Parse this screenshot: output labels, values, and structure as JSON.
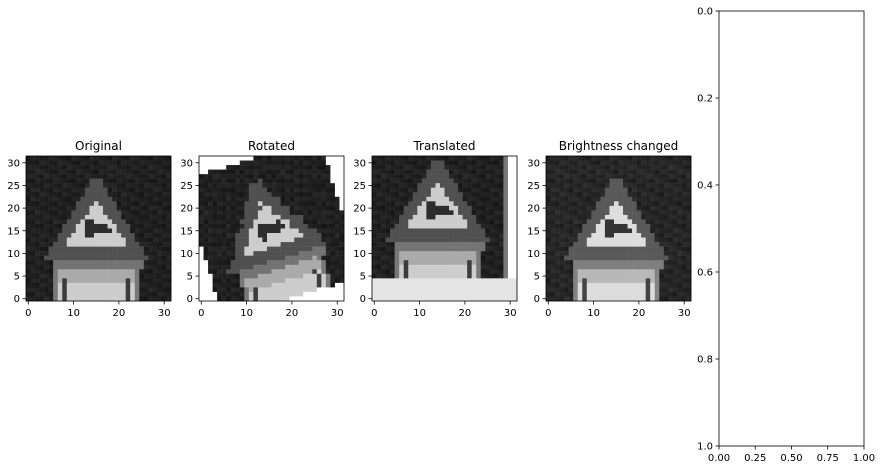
{
  "chart_data": [
    {
      "type": "image",
      "title": "Original",
      "variant": "original",
      "xlim": [
        -0.5,
        31.5
      ],
      "ylim": [
        31.5,
        -0.5
      ],
      "xticks": [
        0,
        10,
        20,
        30
      ],
      "yticks": [
        0,
        5,
        10,
        15,
        20,
        25,
        30
      ],
      "colormap": "gray"
    },
    {
      "type": "image",
      "title": "Rotated",
      "variant": "rotated",
      "xlim": [
        -0.5,
        31.5
      ],
      "ylim": [
        31.5,
        -0.5
      ],
      "xticks": [
        0,
        10,
        20,
        30
      ],
      "yticks": [
        0,
        5,
        10,
        15,
        20,
        25,
        30
      ],
      "colormap": "gray"
    },
    {
      "type": "image",
      "title": "Translated",
      "variant": "translated",
      "xlim": [
        -0.5,
        31.5
      ],
      "ylim": [
        31.5,
        -0.5
      ],
      "xticks": [
        0,
        10,
        20,
        30
      ],
      "yticks": [
        0,
        5,
        10,
        15,
        20,
        25,
        30
      ],
      "colormap": "gray"
    },
    {
      "type": "image",
      "title": "Brightness changed",
      "variant": "brightness",
      "xlim": [
        -0.5,
        31.5
      ],
      "ylim": [
        31.5,
        -0.5
      ],
      "xticks": [
        0,
        10,
        20,
        30
      ],
      "yticks": [
        0,
        5,
        10,
        15,
        20,
        25,
        30
      ],
      "colormap": "gray"
    },
    {
      "type": "empty",
      "title": "",
      "xlim": [
        0,
        1
      ],
      "ylim": [
        0,
        1
      ],
      "xticks": [
        "0.00",
        "0.25",
        "0.50",
        "0.75",
        "1.00"
      ],
      "yticks": [
        "0.0",
        "0.2",
        "0.4",
        "0.6",
        "0.8",
        "1.0"
      ]
    }
  ]
}
